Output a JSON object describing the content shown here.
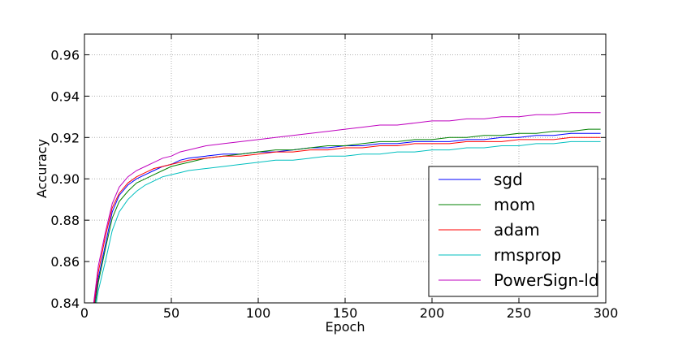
{
  "chart_data": {
    "type": "line",
    "title": "",
    "xlabel": "Epoch",
    "ylabel": "Accuracy",
    "xlim": [
      0,
      300
    ],
    "ylim": [
      0.84,
      0.97
    ],
    "xticks": [
      0,
      50,
      100,
      150,
      200,
      250,
      300
    ],
    "yticks": [
      0.84,
      0.86,
      0.88,
      0.9,
      0.92,
      0.94,
      0.96
    ],
    "ytick_labels": [
      "0.84",
      "0.86",
      "0.88",
      "0.90",
      "0.92",
      "0.94",
      "0.96"
    ],
    "grid": true,
    "legend_position": "lower-right",
    "x": [
      5,
      8,
      12,
      16,
      20,
      25,
      30,
      35,
      40,
      45,
      50,
      55,
      60,
      70,
      80,
      90,
      100,
      110,
      120,
      130,
      140,
      150,
      160,
      170,
      180,
      190,
      200,
      210,
      220,
      230,
      240,
      250,
      260,
      270,
      280,
      290,
      297
    ],
    "series": [
      {
        "name": "sgd",
        "color": "#0000ff",
        "values": [
          0.835,
          0.852,
          0.868,
          0.884,
          0.892,
          0.897,
          0.9,
          0.902,
          0.904,
          0.906,
          0.907,
          0.909,
          0.91,
          0.911,
          0.912,
          0.912,
          0.913,
          0.913,
          0.914,
          0.915,
          0.915,
          0.916,
          0.916,
          0.917,
          0.917,
          0.918,
          0.918,
          0.918,
          0.919,
          0.919,
          0.92,
          0.92,
          0.921,
          0.921,
          0.922,
          0.922,
          0.922
        ]
      },
      {
        "name": "mom",
        "color": "#008000",
        "values": [
          0.832,
          0.85,
          0.866,
          0.881,
          0.889,
          0.894,
          0.898,
          0.9,
          0.902,
          0.904,
          0.906,
          0.907,
          0.908,
          0.91,
          0.911,
          0.912,
          0.913,
          0.914,
          0.914,
          0.915,
          0.916,
          0.916,
          0.917,
          0.918,
          0.918,
          0.919,
          0.919,
          0.92,
          0.92,
          0.921,
          0.921,
          0.922,
          0.922,
          0.923,
          0.923,
          0.924,
          0.924
        ]
      },
      {
        "name": "adam",
        "color": "#ff0000",
        "values": [
          0.836,
          0.855,
          0.872,
          0.886,
          0.893,
          0.898,
          0.901,
          0.903,
          0.905,
          0.906,
          0.907,
          0.908,
          0.909,
          0.91,
          0.911,
          0.911,
          0.912,
          0.913,
          0.913,
          0.914,
          0.914,
          0.915,
          0.915,
          0.916,
          0.916,
          0.917,
          0.917,
          0.917,
          0.918,
          0.918,
          0.918,
          0.919,
          0.919,
          0.919,
          0.92,
          0.92,
          0.92
        ]
      },
      {
        "name": "rmsprop",
        "color": "#00bfbf",
        "values": [
          0.83,
          0.846,
          0.86,
          0.875,
          0.884,
          0.89,
          0.894,
          0.897,
          0.899,
          0.901,
          0.902,
          0.903,
          0.904,
          0.905,
          0.906,
          0.907,
          0.908,
          0.909,
          0.909,
          0.91,
          0.911,
          0.911,
          0.912,
          0.912,
          0.913,
          0.913,
          0.914,
          0.914,
          0.915,
          0.915,
          0.916,
          0.916,
          0.917,
          0.917,
          0.918,
          0.918,
          0.918
        ]
      },
      {
        "name": "PowerSign-ld",
        "color": "#bf00bf",
        "values": [
          0.838,
          0.858,
          0.874,
          0.888,
          0.896,
          0.901,
          0.904,
          0.906,
          0.908,
          0.91,
          0.911,
          0.913,
          0.914,
          0.916,
          0.917,
          0.918,
          0.919,
          0.92,
          0.921,
          0.922,
          0.923,
          0.924,
          0.925,
          0.926,
          0.926,
          0.927,
          0.928,
          0.928,
          0.929,
          0.929,
          0.93,
          0.93,
          0.931,
          0.931,
          0.932,
          0.932,
          0.932
        ]
      }
    ]
  }
}
